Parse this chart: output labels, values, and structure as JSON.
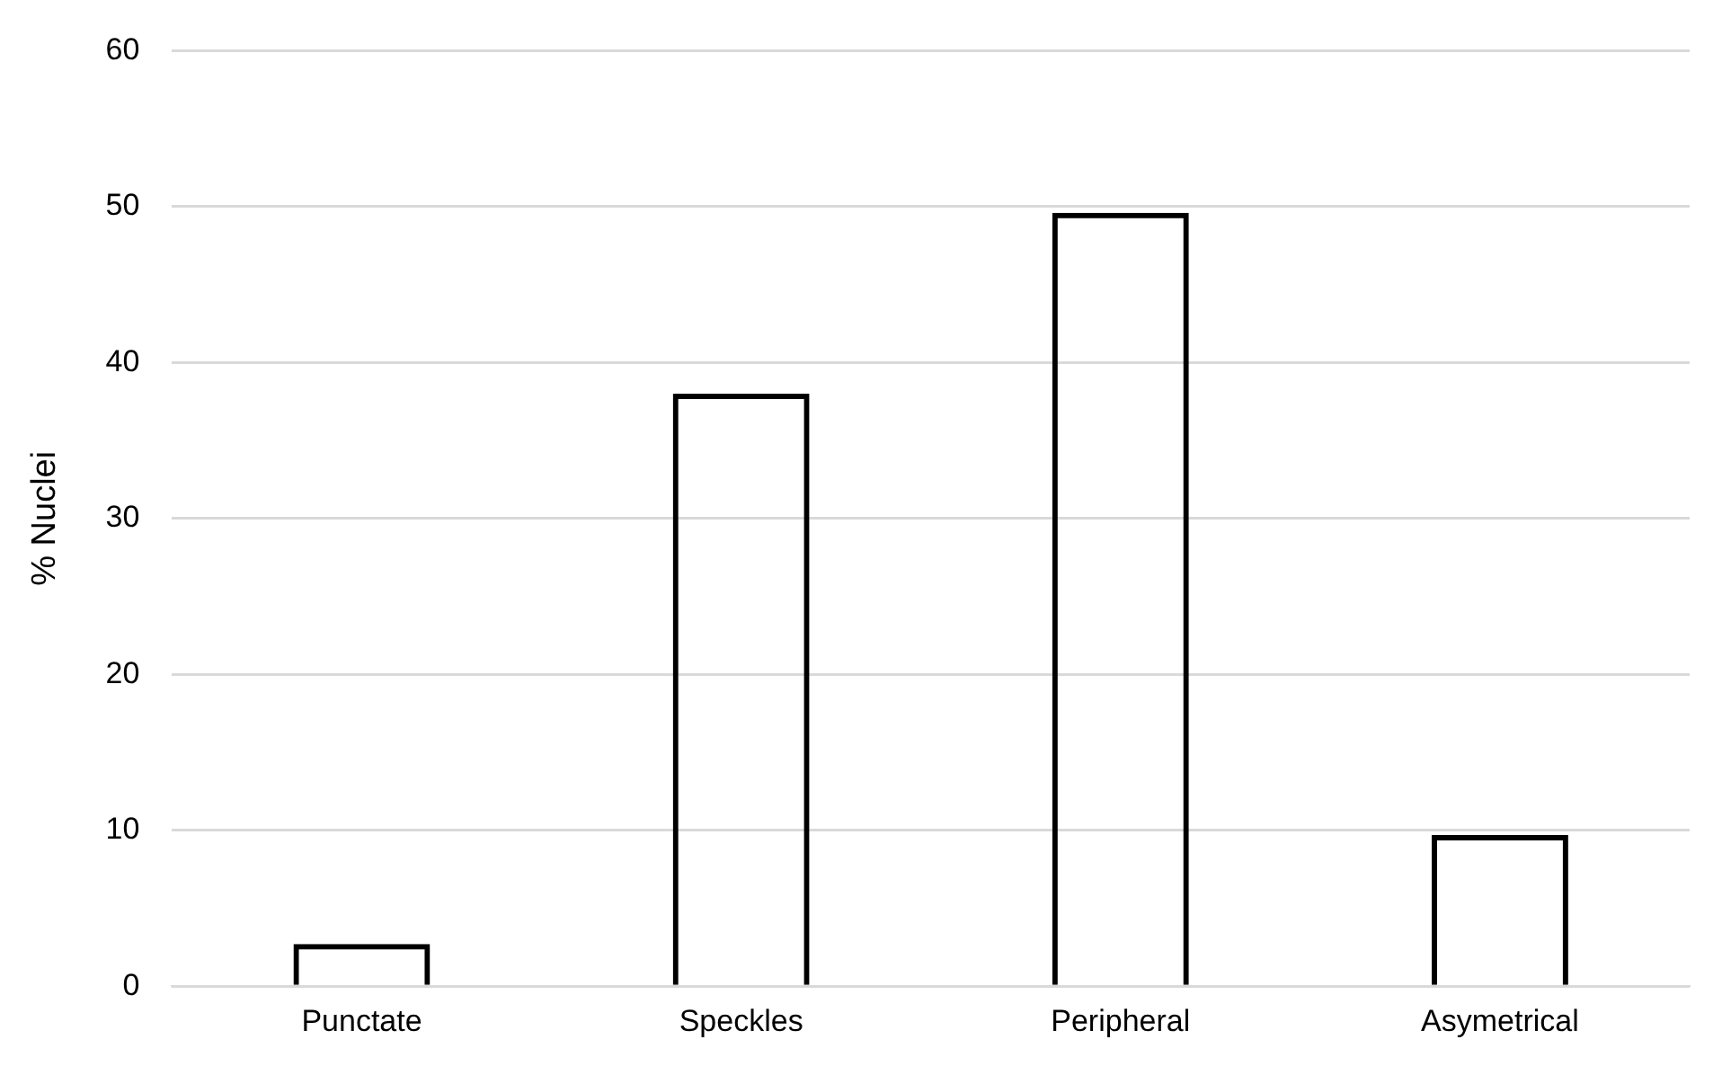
{
  "chart_data": {
    "type": "bar",
    "ylabel": "% Nuclei",
    "categories": [
      "Punctate",
      "Speckles",
      "Peripheral",
      "Asymetrical"
    ],
    "values": [
      2.7,
      38.0,
      49.6,
      9.7
    ],
    "color": "#000000",
    "ylim": [
      0,
      60
    ],
    "yticks": [
      0,
      10,
      20,
      30,
      40,
      50,
      60
    ],
    "grid": "y",
    "legend": false
  }
}
